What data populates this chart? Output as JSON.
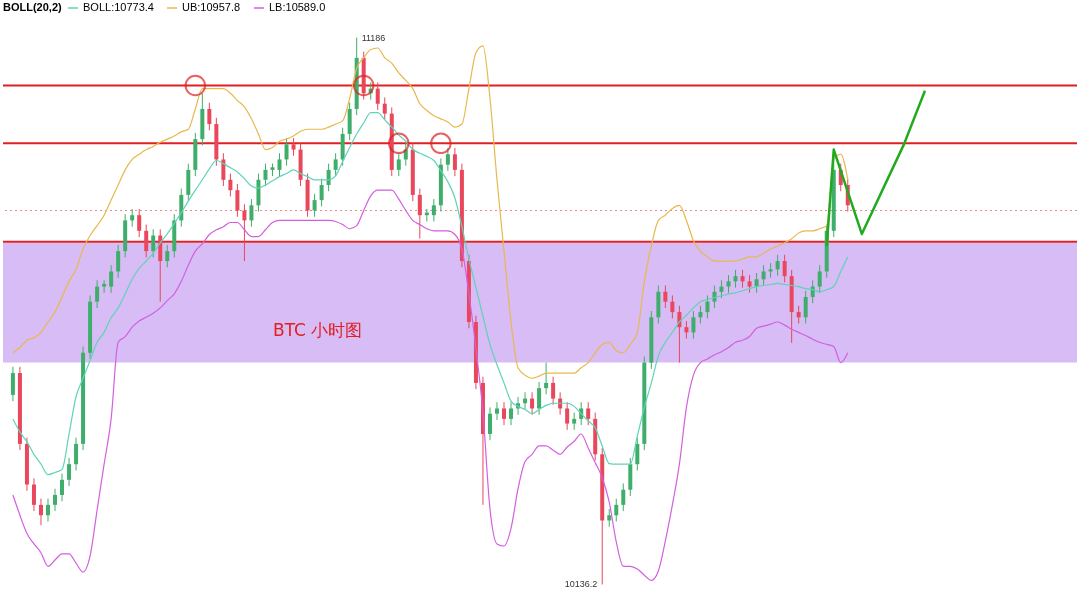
{
  "chart_data": {
    "type": "candlestick",
    "legend_title": "BOLL(20,2)",
    "legend": "top left",
    "categories": [
      null,
      null,
      null,
      null,
      null,
      null,
      null,
      null,
      null,
      null,
      null,
      null,
      null,
      null,
      null,
      null,
      null,
      null,
      null,
      null,
      null,
      null,
      null,
      null,
      null,
      null,
      null,
      null,
      null,
      null,
      null,
      null,
      null,
      null,
      null,
      null,
      null,
      null,
      null,
      null,
      null,
      null,
      null,
      null,
      null,
      null,
      null,
      null,
      null,
      null,
      null,
      null,
      null,
      null,
      null,
      null,
      null,
      null,
      null,
      null,
      null,
      null,
      null,
      null,
      null,
      null,
      null,
      null,
      null,
      null,
      null,
      null,
      null,
      null,
      null,
      null,
      null,
      null,
      null,
      null,
      null,
      null,
      null,
      null,
      null,
      null,
      null,
      null,
      null,
      null,
      null,
      null,
      null,
      null,
      null,
      null,
      null,
      null,
      null,
      null,
      null,
      null,
      null,
      null,
      null,
      null,
      null,
      null,
      null,
      null,
      null,
      null,
      null,
      null,
      null,
      null,
      null,
      null,
      null,
      null,
      null,
      null,
      null,
      null,
      null,
      null,
      null,
      null,
      null,
      null,
      null
    ],
    "ohlc": [
      [
        10500,
        10554,
        10488,
        10542
      ],
      [
        10542,
        10554,
        10394,
        10406
      ],
      [
        10406,
        10418,
        10316,
        10328
      ],
      [
        10328,
        10340,
        10277,
        10289
      ],
      [
        10289,
        10301,
        10250,
        10269
      ],
      [
        10269,
        10301,
        10257,
        10289
      ],
      [
        10289,
        10320,
        10277,
        10308
      ],
      [
        10308,
        10349,
        10296,
        10337
      ],
      [
        10337,
        10379,
        10325,
        10367
      ],
      [
        10367,
        10418,
        10355,
        10406
      ],
      [
        10406,
        10593,
        10394,
        10581
      ],
      [
        10581,
        10691,
        10569,
        10679
      ],
      [
        10679,
        10720,
        10667,
        10708
      ],
      [
        10708,
        10720,
        10696,
        10713
      ],
      [
        10708,
        10749,
        10696,
        10737
      ],
      [
        10737,
        10788,
        10725,
        10776
      ],
      [
        10776,
        10847,
        10764,
        10835
      ],
      [
        10835,
        10857,
        10823,
        10845
      ],
      [
        10845,
        10857,
        10803,
        10815
      ],
      [
        10815,
        10827,
        10764,
        10776
      ],
      [
        10776,
        10818,
        10764,
        10806
      ],
      [
        10806,
        10818,
        10679,
        10757
      ],
      [
        10757,
        10788,
        10745,
        10776
      ],
      [
        10776,
        10847,
        10764,
        10835
      ],
      [
        10835,
        10896,
        10823,
        10884
      ],
      [
        10884,
        10944,
        10872,
        10932
      ],
      [
        10932,
        11003,
        10920,
        10991
      ],
      [
        10991,
        11079,
        10979,
        11049
      ],
      [
        11049,
        11061,
        11008,
        11020
      ],
      [
        11020,
        11032,
        10940,
        10952
      ],
      [
        10952,
        10964,
        10901,
        10913
      ],
      [
        10913,
        10925,
        10881,
        10893
      ],
      [
        10893,
        10905,
        10842,
        10854
      ],
      [
        10854,
        10866,
        10757,
        10835
      ],
      [
        10835,
        10876,
        10823,
        10864
      ],
      [
        10864,
        10925,
        10852,
        10913
      ],
      [
        10913,
        10944,
        10901,
        10932
      ],
      [
        10932,
        10944,
        10920,
        10937
      ],
      [
        10932,
        10964,
        10920,
        10952
      ],
      [
        10952,
        10993,
        10940,
        10981
      ],
      [
        10981,
        10993,
        10959,
        10971
      ],
      [
        10971,
        10983,
        10901,
        10913
      ],
      [
        10913,
        10925,
        10842,
        10854
      ],
      [
        10854,
        10886,
        10842,
        10874
      ],
      [
        10874,
        10915,
        10862,
        10903
      ],
      [
        10903,
        10944,
        10891,
        10932
      ],
      [
        10932,
        10964,
        10920,
        10952
      ],
      [
        10952,
        11013,
        10940,
        11001
      ],
      [
        11001,
        11061,
        10989,
        11049
      ],
      [
        11049,
        11186,
        11037,
        11147
      ],
      [
        11147,
        11159,
        11067,
        11079
      ],
      [
        11079,
        11100,
        11067,
        11088
      ],
      [
        11088,
        11100,
        11047,
        11059
      ],
      [
        11059,
        11071,
        11028,
        11040
      ],
      [
        11040,
        11052,
        10920,
        10932
      ],
      [
        10932,
        10964,
        10920,
        10952
      ],
      [
        10952,
        10983,
        10940,
        10971
      ],
      [
        10971,
        10983,
        10872,
        10884
      ],
      [
        10884,
        10896,
        10800,
        10845
      ],
      [
        10845,
        10857,
        10833,
        10850
      ],
      [
        10845,
        10876,
        10833,
        10864
      ],
      [
        10864,
        10954,
        10852,
        10942
      ],
      [
        10942,
        10974,
        10930,
        10962
      ],
      [
        10962,
        10974,
        10920,
        10932
      ],
      [
        10932,
        10944,
        10745,
        10757
      ],
      [
        10757,
        10769,
        10628,
        10640
      ],
      [
        10640,
        10652,
        10511,
        10523
      ],
      [
        10523,
        10535,
        10289,
        10425
      ],
      [
        10425,
        10476,
        10413,
        10464
      ],
      [
        10464,
        10486,
        10452,
        10474
      ],
      [
        10474,
        10486,
        10442,
        10454
      ],
      [
        10454,
        10486,
        10442,
        10474
      ],
      [
        10474,
        10496,
        10462,
        10484
      ],
      [
        10484,
        10505,
        10472,
        10493
      ],
      [
        10493,
        10505,
        10462,
        10474
      ],
      [
        10474,
        10525,
        10462,
        10513
      ],
      [
        10513,
        10562,
        10501,
        10523
      ],
      [
        10523,
        10535,
        10481,
        10493
      ],
      [
        10493,
        10505,
        10462,
        10474
      ],
      [
        10474,
        10486,
        10433,
        10445
      ],
      [
        10445,
        10466,
        10433,
        10454
      ],
      [
        10454,
        10486,
        10442,
        10474
      ],
      [
        10474,
        10486,
        10442,
        10454
      ],
      [
        10454,
        10466,
        10374,
        10386
      ],
      [
        10386,
        10398,
        10136.2,
        10259
      ],
      [
        10259,
        10281,
        10247,
        10269
      ],
      [
        10269,
        10301,
        10257,
        10289
      ],
      [
        10289,
        10330,
        10277,
        10318
      ],
      [
        10318,
        10379,
        10306,
        10367
      ],
      [
        10367,
        10418,
        10355,
        10406
      ],
      [
        10406,
        10574,
        10394,
        10562
      ],
      [
        10562,
        10661,
        10550,
        10649
      ],
      [
        10649,
        10710,
        10637,
        10698
      ],
      [
        10698,
        10710,
        10667,
        10679
      ],
      [
        10679,
        10691,
        10647,
        10659
      ],
      [
        10659,
        10671,
        10562,
        10630
      ],
      [
        10630,
        10642,
        10608,
        10620
      ],
      [
        10620,
        10661,
        10608,
        10649
      ],
      [
        10649,
        10671,
        10637,
        10659
      ],
      [
        10659,
        10691,
        10647,
        10679
      ],
      [
        10679,
        10710,
        10667,
        10698
      ],
      [
        10698,
        10720,
        10686,
        10708
      ],
      [
        10708,
        10730,
        10696,
        10718
      ],
      [
        10718,
        10740,
        10706,
        10728
      ],
      [
        10728,
        10740,
        10706,
        10718
      ],
      [
        10718,
        10730,
        10696,
        10708
      ],
      [
        10708,
        10734,
        10696,
        10722
      ],
      [
        10722,
        10749,
        10710,
        10737
      ],
      [
        10737,
        10753,
        10725,
        10741
      ],
      [
        10741,
        10769,
        10729,
        10757
      ],
      [
        10757,
        10769,
        10716,
        10728
      ],
      [
        10728,
        10740,
        10600,
        10659
      ],
      [
        10659,
        10671,
        10637,
        10649
      ],
      [
        10649,
        10700,
        10637,
        10688
      ],
      [
        10688,
        10720,
        10676,
        10708
      ],
      [
        10708,
        10749,
        10696,
        10737
      ],
      [
        10737,
        10827,
        10725,
        10815
      ],
      [
        10815,
        10962,
        10803,
        10932
      ],
      [
        10932,
        10944,
        10891,
        10903
      ],
      [
        10903,
        10915,
        10852,
        10864
      ],
      null,
      null,
      null,
      null,
      null,
      null,
      null,
      null,
      null,
      null,
      null
    ],
    "series": [
      {
        "name": "BOLL:10773.4",
        "type": "line",
        "color": "#5fd3b8",
        "values": [
          10454,
          10429,
          10410,
          10386,
          10367,
          10347,
          10351,
          10357,
          10425,
          10497,
          10532,
          10566,
          10601,
          10620,
          10648,
          10667,
          10694,
          10722,
          10743,
          10757,
          10772,
          10792,
          10809,
          10829,
          10850,
          10872,
          10893,
          10913,
          10934,
          10950,
          10944,
          10936,
          10928,
          10915,
          10901,
          10897,
          10903,
          10911,
          10919,
          10925,
          10932,
          10925,
          10919,
          10913,
          10913,
          10913,
          10921,
          10948,
          10975,
          11001,
          11022,
          11042,
          11042,
          11028,
          11014,
          10999,
          10987,
          10971,
          10964,
          10958,
          10950,
          10930,
          10909,
          10878,
          10823,
          10761,
          10706,
          10651,
          10597,
          10558,
          10523,
          10488,
          10478,
          10472,
          10464,
          10472,
          10480,
          10484,
          10484,
          10484,
          10478,
          10464,
          10450,
          10437,
          10402,
          10368,
          10367,
          10367,
          10367,
          10421,
          10476,
          10523,
          10575,
          10601,
          10620,
          10640,
          10653,
          10667,
          10679,
          10683,
          10687,
          10690,
          10694,
          10696,
          10700,
          10704,
          10708,
          10710,
          10712,
          10714,
          10712,
          10710,
          10708,
          10704,
          10702,
          10698,
          10702,
          10708,
          10737,
          10765,
          null,
          null,
          null,
          null,
          null,
          null,
          null,
          null,
          null,
          null,
          null
        ]
      },
      {
        "name": "UB:10957.8",
        "type": "line",
        "color": "#e8b84e",
        "values": [
          10581,
          10591,
          10605,
          10610,
          10620,
          10640,
          10659,
          10688,
          10718,
          10741,
          10780,
          10806,
          10825,
          10845,
          10874,
          10903,
          10932,
          10952,
          10962,
          10971,
          10977,
          10985,
          10991,
          10997,
          11005,
          11010,
          11049,
          11088,
          11088,
          11088,
          11088,
          11079,
          11065,
          11053,
          11030,
          11001,
          10971,
          10975,
          10987,
          10991,
          10997,
          11006,
          11010,
          11010,
          11010,
          11014,
          11020,
          11026,
          11069,
          11127,
          11147,
          11163,
          11166,
          11147,
          11137,
          11118,
          11104,
          11088,
          11059,
          11046,
          11036,
          11030,
          11024,
          11014,
          11020,
          11088,
          11157,
          11170,
          11069,
          10913,
          10776,
          10640,
          10552,
          10538,
          10532,
          10536,
          10542,
          10542,
          10542,
          10542,
          10542,
          10552,
          10562,
          10581,
          10597,
          10601,
          10585,
          10581,
          10597,
          10620,
          10718,
          10786,
          10835,
          10845,
          10858,
          10864,
          10835,
          10796,
          10776,
          10765,
          10757,
          10757,
          10757,
          10757,
          10761,
          10765,
          10765,
          10772,
          10780,
          10786,
          10792,
          10800,
          10811,
          10815,
          10815,
          10819,
          10825,
          10952,
          10962,
          10913,
          null,
          null,
          null,
          null,
          null,
          null,
          null,
          null,
          null,
          null,
          null
        ]
      },
      {
        "name": "LB:10589.0",
        "type": "line",
        "color": "#d35fe0",
        "values": [
          10308,
          10269,
          10234,
          10214,
          10197,
          10171,
          10183,
          10195,
          10195,
          10177,
          10160,
          10191,
          10279,
          10367,
          10454,
          10601,
          10612,
          10630,
          10642,
          10649,
          10657,
          10667,
          10681,
          10694,
          10718,
          10749,
          10776,
          10790,
          10808,
          10817,
          10823,
          10831,
          10831,
          10817,
          10804,
          10804,
          10817,
          10831,
          10835,
          10835,
          10835,
          10835,
          10835,
          10835,
          10835,
          10835,
          10833,
          10827,
          10819,
          10825,
          10854,
          10882,
          10893,
          10893,
          10893,
          10876,
          10854,
          10835,
          10827,
          10819,
          10815,
          10815,
          10815,
          10808,
          10780,
          10694,
          10589,
          10466,
          10281,
          10214,
          10210,
          10244,
          10320,
          10372,
          10386,
          10402,
          10402,
          10394,
          10386,
          10400,
          10411,
          10425,
          10398,
          10370,
          10341,
          10294,
          10218,
          10171,
          10171,
          10166,
          10154,
          10144,
          10162,
          10220,
          10289,
          10367,
          10476,
          10538,
          10562,
          10569,
          10577,
          10583,
          10591,
          10601,
          10605,
          10612,
          10628,
          10632,
          10636,
          10640,
          10634,
          10626,
          10620,
          10614,
          10607,
          10601,
          10597,
          10593,
          10562,
          10581,
          null,
          null,
          null,
          null,
          null,
          null,
          null,
          null,
          null,
          null,
          null
        ]
      },
      {
        "type": "line",
        "color": "#22aa1e",
        "values": [
          null,
          null,
          null,
          null,
          null,
          null,
          null,
          null,
          null,
          null,
          null,
          null,
          null,
          null,
          null,
          null,
          null,
          null,
          null,
          null,
          null,
          null,
          null,
          null,
          null,
          null,
          null,
          null,
          null,
          null,
          null,
          null,
          null,
          null,
          null,
          null,
          null,
          null,
          null,
          null,
          null,
          null,
          null,
          null,
          null,
          null,
          null,
          null,
          null,
          null,
          null,
          null,
          null,
          null,
          null,
          null,
          null,
          null,
          null,
          null,
          null,
          null,
          null,
          null,
          null,
          null,
          null,
          null,
          null,
          null,
          null,
          null,
          null,
          null,
          null,
          null,
          null,
          null,
          null,
          null,
          null,
          null,
          null,
          null,
          null,
          null,
          null,
          null,
          null,
          null,
          null,
          null,
          null,
          null,
          null,
          null,
          null,
          null,
          null,
          null,
          null,
          null,
          null,
          null,
          null,
          null,
          null,
          null,
          null,
          null,
          null,
          null,
          null,
          null,
          null,
          null,
          10786,
          10971,
          null,
          null,
          null,
          10809,
          null,
          null,
          null,
          null,
          null,
          10981,
          null,
          null,
          11084
        ]
      },
      {
        "type": "scatter",
        "color": "#e02020",
        "values": [
          null,
          null,
          null,
          null,
          null,
          null,
          null,
          null,
          null,
          null,
          null,
          null,
          null,
          null,
          null,
          null,
          null,
          null,
          null,
          null,
          null,
          null,
          null,
          null,
          null,
          null,
          11094,
          null,
          null,
          null,
          null,
          null,
          null,
          null,
          null,
          null,
          null,
          null,
          null,
          null,
          null,
          null,
          null,
          null,
          null,
          null,
          null,
          null,
          null,
          null,
          11094,
          null,
          null,
          null,
          null,
          10983,
          null,
          null,
          null,
          null,
          null,
          10983,
          null,
          null,
          null,
          null,
          null,
          null,
          null,
          null,
          null,
          null,
          null,
          null,
          null,
          null,
          null,
          null,
          null,
          null,
          null,
          null,
          null,
          null,
          null,
          null,
          null,
          null,
          null,
          null,
          null,
          null,
          null,
          null,
          null,
          null,
          null,
          null,
          null,
          null,
          null,
          null,
          null,
          null,
          null,
          null,
          null,
          null,
          null,
          null,
          null,
          null,
          null,
          null,
          null,
          null,
          null,
          null,
          null,
          null,
          null,
          null,
          null,
          null,
          null,
          null,
          null,
          null,
          null,
          null,
          null
        ]
      }
    ],
    "ref_lines": [
      {
        "axis": "y",
        "value": 11094,
        "color": "#e02020"
      },
      {
        "axis": "y",
        "value": 10983,
        "color": "#e02020"
      },
      {
        "axis": "y",
        "value": 10794,
        "color": "#e02020"
      },
      {
        "axis": "y",
        "value": 10854,
        "color": "#f08a8a",
        "line_style": "dotted"
      }
    ],
    "bands": [
      {
        "axis": "y",
        "from": 10562,
        "to": 10792,
        "color": "#c9a6f2"
      }
    ],
    "annotations": [
      "BTC 小时图",
      "11186",
      "10136.2"
    ]
  }
}
